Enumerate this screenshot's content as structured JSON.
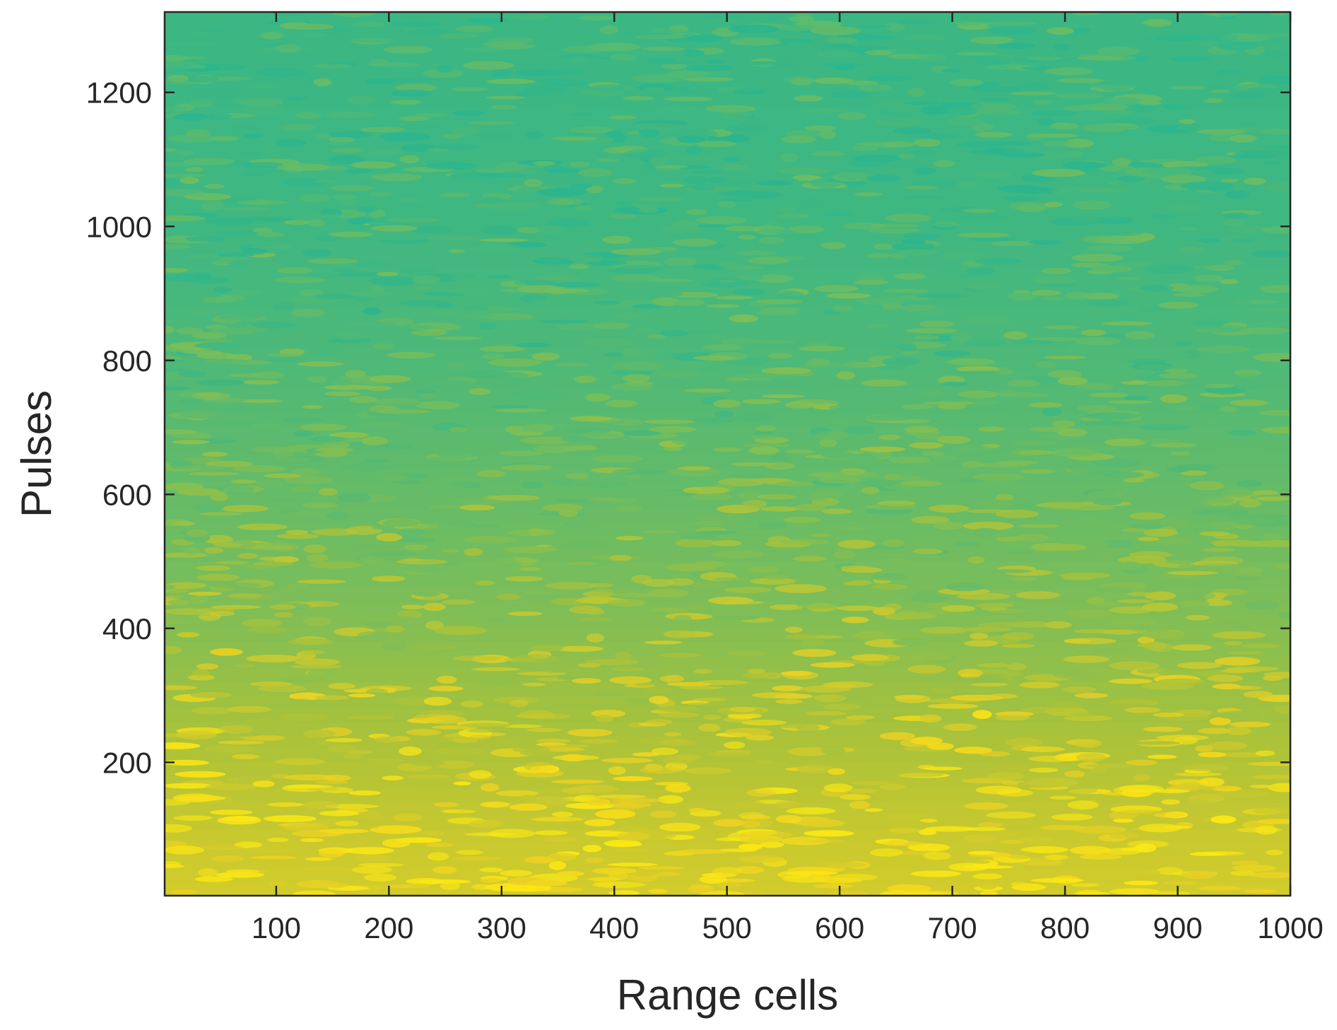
{
  "chart_data": {
    "type": "heatmap",
    "title": "",
    "xlabel": "Range cells",
    "ylabel": "Pulses",
    "xlim": [
      1,
      1000
    ],
    "ylim": [
      1,
      1320
    ],
    "x_ticks": [
      100,
      200,
      300,
      400,
      500,
      600,
      700,
      800,
      900,
      1000
    ],
    "y_ticks": [
      200,
      400,
      600,
      800,
      1000,
      1200
    ],
    "grid": false,
    "colorbar": false,
    "colormap": "parula",
    "colors": {
      "low": "#2bb58f",
      "mid": "#a9c23a",
      "high": "#f0d221",
      "peak": "#fbe814",
      "frame": "#262626"
    },
    "intensity_profile_by_pulse": [
      {
        "pulse": 1,
        "level": 0.97
      },
      {
        "pulse": 100,
        "level": 0.9
      },
      {
        "pulse": 200,
        "level": 0.78
      },
      {
        "pulse": 300,
        "level": 0.66
      },
      {
        "pulse": 400,
        "level": 0.52
      },
      {
        "pulse": 500,
        "level": 0.42
      },
      {
        "pulse": 600,
        "level": 0.34
      },
      {
        "pulse": 700,
        "level": 0.27
      },
      {
        "pulse": 800,
        "level": 0.2
      },
      {
        "pulse": 1000,
        "level": 0.12
      },
      {
        "pulse": 1200,
        "level": 0.1
      },
      {
        "pulse": 1320,
        "level": 0.1
      }
    ]
  }
}
